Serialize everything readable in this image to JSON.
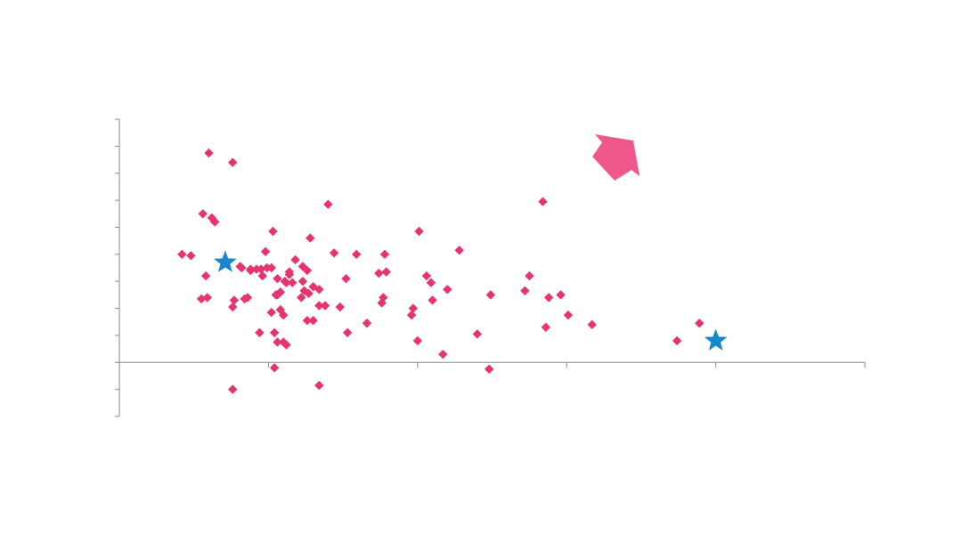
{
  "chart_data": {
    "type": "scatter",
    "title": "",
    "xlabel": "",
    "ylabel": "",
    "xlim": [
      0,
      25
    ],
    "ylim": [
      -2,
      9
    ],
    "x_major_ticks": [
      0,
      5,
      10,
      15,
      20,
      25
    ],
    "y_ticks": [
      -2,
      -1,
      0,
      1,
      2,
      3,
      4,
      5,
      6,
      7,
      8,
      9
    ],
    "grid": false,
    "colors": {
      "points": "#E8336F",
      "highlight": "#1487CF",
      "arrow": "#F0578B",
      "axis": "#8a8a8a"
    },
    "series": [
      {
        "name": "points",
        "marker": "diamond",
        "points": [
          [
            3.0,
            7.75
          ],
          [
            2.1,
            4.0
          ],
          [
            2.4,
            3.95
          ],
          [
            3.8,
            7.4
          ],
          [
            2.8,
            5.5
          ],
          [
            3.2,
            5.2
          ],
          [
            3.1,
            5.35
          ],
          [
            2.9,
            3.2
          ],
          [
            2.75,
            2.35
          ],
          [
            2.95,
            2.4
          ],
          [
            3.8,
            2.05
          ],
          [
            3.85,
            2.3
          ],
          [
            4.2,
            2.35
          ],
          [
            4.1,
            3.5
          ],
          [
            4.4,
            3.45
          ],
          [
            4.6,
            3.45
          ],
          [
            4.8,
            3.2
          ],
          [
            4.9,
            4.1
          ],
          [
            4.95,
            3.5
          ],
          [
            5.15,
            4.85
          ],
          [
            5.1,
            3.5
          ],
          [
            5.3,
            3.1
          ],
          [
            5.25,
            2.5
          ],
          [
            5.4,
            2.6
          ],
          [
            5.55,
            3.0
          ],
          [
            5.7,
            3.25
          ],
          [
            5.6,
            2.95
          ],
          [
            5.9,
            3.8
          ],
          [
            5.8,
            2.95
          ],
          [
            6.15,
            3.55
          ],
          [
            6.3,
            3.4
          ],
          [
            6.1,
            2.4
          ],
          [
            6.4,
            4.6
          ],
          [
            6.2,
            2.65
          ],
          [
            6.5,
            1.55
          ],
          [
            6.3,
            1.55
          ],
          [
            6.7,
            2.1
          ],
          [
            6.9,
            2.1
          ],
          [
            6.7,
            2.7
          ],
          [
            7.0,
            5.85
          ],
          [
            7.2,
            4.05
          ],
          [
            7.4,
            2.05
          ],
          [
            7.6,
            3.1
          ],
          [
            7.65,
            1.1
          ],
          [
            7.95,
            4.0
          ],
          [
            8.3,
            1.45
          ],
          [
            8.7,
            3.3
          ],
          [
            8.85,
            2.4
          ],
          [
            8.8,
            2.2
          ],
          [
            8.9,
            4.0
          ],
          [
            8.95,
            3.35
          ],
          [
            9.8,
            1.75
          ],
          [
            9.85,
            2.0
          ],
          [
            10.0,
            0.8
          ],
          [
            10.05,
            4.85
          ],
          [
            10.3,
            3.2
          ],
          [
            10.45,
            2.95
          ],
          [
            10.5,
            2.3
          ],
          [
            11.0,
            2.7
          ],
          [
            10.85,
            0.3
          ],
          [
            11.4,
            4.15
          ],
          [
            12.0,
            1.05
          ],
          [
            12.45,
            2.5
          ],
          [
            12.4,
            -0.25
          ],
          [
            13.6,
            2.65
          ],
          [
            13.75,
            3.2
          ],
          [
            14.2,
            5.95
          ],
          [
            14.3,
            1.3
          ],
          [
            14.4,
            2.4
          ],
          [
            14.8,
            2.5
          ],
          [
            15.05,
            1.75
          ],
          [
            15.85,
            1.4
          ],
          [
            18.7,
            0.8
          ],
          [
            19.45,
            1.45
          ],
          [
            5.2,
            1.1
          ],
          [
            5.3,
            0.75
          ],
          [
            5.5,
            0.75
          ],
          [
            5.6,
            0.65
          ],
          [
            5.2,
            -0.2
          ],
          [
            3.8,
            -1.0
          ],
          [
            6.7,
            -0.85
          ],
          [
            5.4,
            2.6
          ],
          [
            4.7,
            1.1
          ],
          [
            4.3,
            2.4
          ],
          [
            4.05,
            3.55
          ],
          [
            4.4,
            3.4
          ],
          [
            5.1,
            1.85
          ],
          [
            5.4,
            1.95
          ],
          [
            6.15,
            3.0
          ],
          [
            6.35,
            2.55
          ],
          [
            4.75,
            3.45
          ],
          [
            5.5,
            1.75
          ],
          [
            5.7,
            3.35
          ],
          [
            6.5,
            2.8
          ],
          [
            5.3,
            2.5
          ]
        ]
      },
      {
        "name": "highlighted",
        "marker": "star",
        "points": [
          [
            3.55,
            3.7
          ],
          [
            20.0,
            0.8
          ]
        ]
      }
    ]
  }
}
